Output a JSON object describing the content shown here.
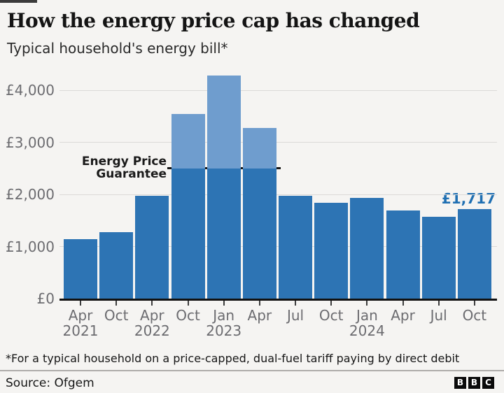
{
  "header": {
    "title": "How the energy price cap has changed",
    "subtitle": "Typical household's energy bill*"
  },
  "chart_data": {
    "type": "bar",
    "title": "How the energy price cap has changed",
    "subtitle": "Typical household's energy bill*",
    "categories": [
      "Apr 2021",
      "Oct 2021",
      "Apr 2022",
      "Oct 2022",
      "Jan 2023",
      "Apr 2023",
      "Jul 2023",
      "Oct 2023",
      "Jan 2024",
      "Apr 2024",
      "Jul 2024",
      "Oct 2024"
    ],
    "values": [
      1138,
      1277,
      1971,
      3549,
      4279,
      3280,
      1976,
      1834,
      1928,
      1690,
      1568,
      1717
    ],
    "x_tick_months": [
      "Apr",
      "Oct",
      "Apr",
      "Oct",
      "Jan",
      "Apr",
      "Jul",
      "Oct",
      "Jan",
      "Apr",
      "Jul",
      "Oct"
    ],
    "x_tick_years": [
      {
        "index": 0,
        "year": "2021"
      },
      {
        "index": 2,
        "year": "2022"
      },
      {
        "index": 4,
        "year": "2023"
      },
      {
        "index": 8,
        "year": "2024"
      }
    ],
    "y_ticks": [
      {
        "label": "£0",
        "value": 0
      },
      {
        "label": "£1,000",
        "value": 1000
      },
      {
        "label": "£2,000",
        "value": 2000
      },
      {
        "label": "£3,000",
        "value": 3000
      },
      {
        "label": "£4,000",
        "value": 4000
      }
    ],
    "ylim": [
      0,
      4458
    ],
    "grid": true,
    "legend_position": "none",
    "annotation_line": {
      "value": 2500,
      "label_line1": "Energy Price",
      "label_line2": "Guarantee"
    },
    "capped_bar_indices": [
      3,
      4,
      5
    ],
    "last_bar_label": "£1,717",
    "colors": {
      "bar": "#2d74b4",
      "bar_above_guarantee": "#6f9dce",
      "annotation": "#161616",
      "last_bar_label": "#1f6fb2"
    }
  },
  "footer": {
    "footnote": "*For a typical household on a price-capped, dual-fuel tariff paying by direct debit",
    "source": "Source: Ofgem",
    "logo_letters": [
      "B",
      "B",
      "C"
    ]
  }
}
